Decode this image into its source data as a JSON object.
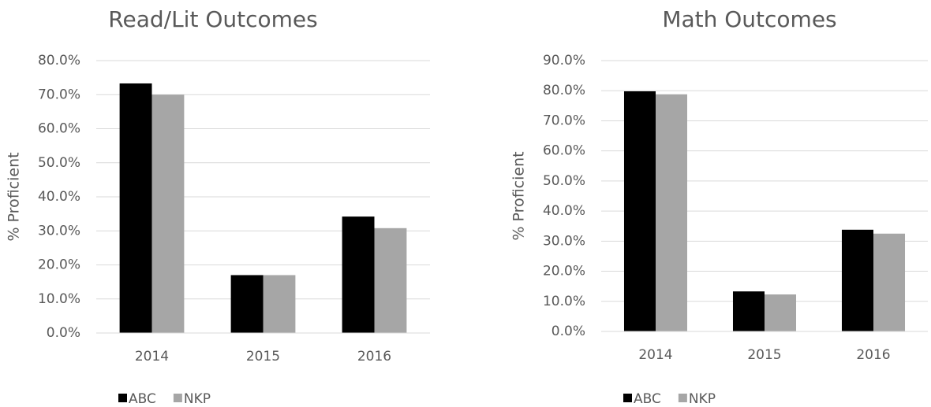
{
  "chart_data": [
    {
      "type": "bar",
      "title": "Read/Lit Outcomes",
      "y_label": "% Proficient",
      "categories": [
        "2014",
        "2015",
        "2016"
      ],
      "series": [
        {
          "name": "ABC",
          "color": "#000000",
          "values": [
            73.3,
            17.0,
            34.2
          ]
        },
        {
          "name": "NKP",
          "color": "#a6a6a6",
          "values": [
            70.0,
            17.0,
            30.8
          ]
        }
      ],
      "ylim": [
        0,
        80
      ],
      "yticks": [
        {
          "value": 0,
          "label": "0.0%"
        },
        {
          "value": 10,
          "label": "10.0%"
        },
        {
          "value": 20,
          "label": "20.0%"
        },
        {
          "value": 30,
          "label": "30.0%"
        },
        {
          "value": 40,
          "label": "40.0%"
        },
        {
          "value": 50,
          "label": "50.0%"
        },
        {
          "value": 60,
          "label": "60.0%"
        },
        {
          "value": 70,
          "label": "70.0%"
        },
        {
          "value": 80,
          "label": "80.0%"
        }
      ],
      "grid": true,
      "legend": "bottom"
    },
    {
      "type": "bar",
      "title": "Math Outcomes",
      "y_label": "% Proficient",
      "categories": [
        "2014",
        "2015",
        "2016"
      ],
      "series": [
        {
          "name": "ABC",
          "color": "#000000",
          "values": [
            79.8,
            13.3,
            33.8
          ]
        },
        {
          "name": "NKP",
          "color": "#a6a6a6",
          "values": [
            78.8,
            12.3,
            32.5
          ]
        }
      ],
      "ylim": [
        0,
        90
      ],
      "yticks": [
        {
          "value": 0,
          "label": "0.0%"
        },
        {
          "value": 10,
          "label": "10.0%"
        },
        {
          "value": 20,
          "label": "20.0%"
        },
        {
          "value": 30,
          "label": "30.0%"
        },
        {
          "value": 40,
          "label": "40.0%"
        },
        {
          "value": 50,
          "label": "50.0%"
        },
        {
          "value": 60,
          "label": "60.0%"
        },
        {
          "value": 70,
          "label": "70.0%"
        },
        {
          "value": 80,
          "label": "80.0%"
        },
        {
          "value": 90,
          "label": "90.0%"
        }
      ],
      "grid": true,
      "legend": "bottom"
    }
  ]
}
